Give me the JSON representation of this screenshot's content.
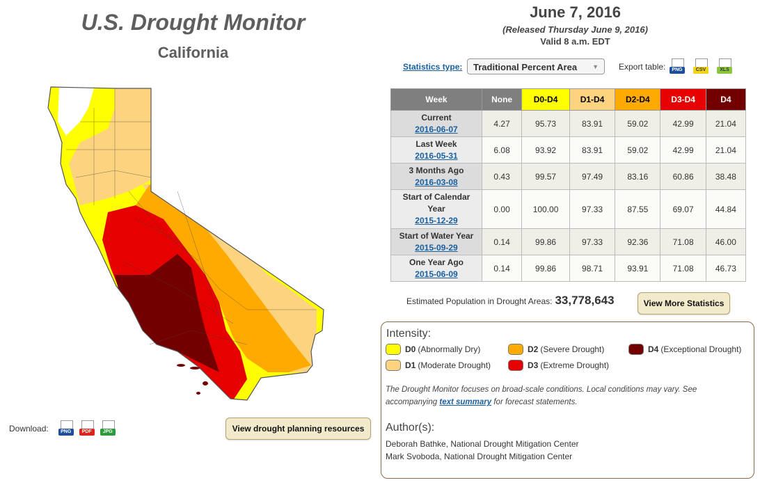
{
  "header": {
    "title": "U.S. Drought Monitor",
    "state": "California"
  },
  "release": {
    "date": "June 7, 2016",
    "released": "(Released Thursday June 9, 2016)",
    "valid": "Valid 8 a.m. EDT"
  },
  "controls": {
    "statistics_label": "Statistics type:",
    "statistics_value": "Traditional Percent Area",
    "export_label": "Export table:",
    "export_formats": [
      "PNG",
      "CSV",
      "XLS"
    ]
  },
  "table": {
    "columns": [
      "Week",
      "None",
      "D0-D4",
      "D1-D4",
      "D2-D4",
      "D3-D4",
      "D4"
    ],
    "header_colors": [
      "#7f7f7f",
      "#7f7f7f",
      "#ffff00",
      "#fcd37f",
      "#ffaa00",
      "#e60000",
      "#730000"
    ],
    "header_text_colors": [
      "#ffffff",
      "#ffffff",
      "#000000",
      "#000000",
      "#000000",
      "#ffffff",
      "#ffffff"
    ],
    "rows": [
      {
        "week": "Current",
        "date": "2016-06-07",
        "values": [
          "4.27",
          "95.73",
          "83.91",
          "59.02",
          "42.99",
          "21.04"
        ]
      },
      {
        "week": "Last Week",
        "date": "2016-05-31",
        "values": [
          "6.08",
          "93.92",
          "83.91",
          "59.02",
          "42.99",
          "21.04"
        ]
      },
      {
        "week": "3 Months Ago",
        "date": "2016-03-08",
        "values": [
          "0.43",
          "99.57",
          "97.49",
          "83.16",
          "60.86",
          "38.48"
        ]
      },
      {
        "week": "Start of Calendar Year",
        "date": "2015-12-29",
        "values": [
          "0.00",
          "100.00",
          "97.33",
          "87.55",
          "69.07",
          "44.84"
        ]
      },
      {
        "week": "Start of Water Year",
        "date": "2015-09-29",
        "values": [
          "0.14",
          "99.86",
          "97.33",
          "92.36",
          "71.08",
          "46.00"
        ]
      },
      {
        "week": "One Year Ago",
        "date": "2015-06-09",
        "values": [
          "0.14",
          "99.86",
          "98.71",
          "93.91",
          "71.08",
          "46.73"
        ]
      }
    ]
  },
  "population": {
    "label": "Estimated Population in Drought Areas:",
    "value": "33,778,643"
  },
  "buttons": {
    "view_more": "View More Statistics",
    "planning": "View drought planning resources"
  },
  "download": {
    "label": "Download:",
    "formats": [
      "PNG",
      "PDF",
      "JPG"
    ]
  },
  "legend": {
    "title": "Intensity:",
    "items": [
      {
        "code": "D0",
        "desc": "(Abnormally Dry)",
        "color": "#ffff00"
      },
      {
        "code": "D1",
        "desc": "(Moderate Drought)",
        "color": "#fcd37f"
      },
      {
        "code": "D2",
        "desc": "(Severe Drought)",
        "color": "#ffaa00"
      },
      {
        "code": "D3",
        "desc": "(Extreme Drought)",
        "color": "#e60000"
      },
      {
        "code": "D4",
        "desc": "(Exceptional Drought)",
        "color": "#730000"
      }
    ],
    "note_1": "The Drought Monitor focuses on broad-scale conditions. Local conditions may vary. See accompanying",
    "note_link": "text summary",
    "note_2": "for forecast statements."
  },
  "authors": {
    "title": "Author(s):",
    "list": [
      "Deborah Bathke, National Drought Mitigation Center",
      "Mark Svoboda, National Drought Mitigation Center"
    ]
  }
}
